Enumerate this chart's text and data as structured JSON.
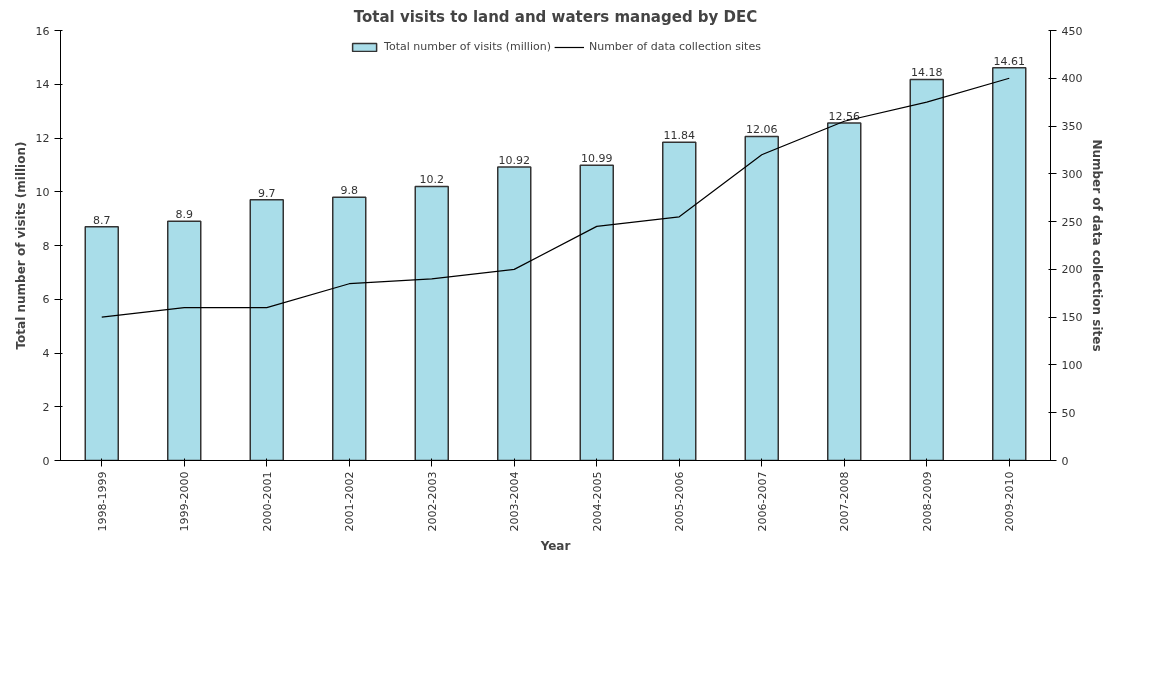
{
  "chart_data": {
    "type": "bar",
    "title": "Total visits to land and waters managed by DEC",
    "xlabel": "Year",
    "ylabel": "Total number of visits (million)",
    "y2label": "Number of data collection sites",
    "categories": [
      "1998-1999",
      "1999-2000",
      "2000-2001",
      "2001-2002",
      "2002-2003",
      "2003-2004",
      "2004-2005",
      "2005-2006",
      "2006-2007",
      "2007-2008",
      "2008-2009",
      "2009-2010"
    ],
    "series": [
      {
        "name": "Total number of visits (million)",
        "color": "#a9dde9",
        "values": [
          8.7,
          8.9,
          9.7,
          9.8,
          10.2,
          10.92,
          10.99,
          11.84,
          12.06,
          12.56,
          14.18,
          14.61
        ],
        "value_labels": [
          "8.7",
          "8.9",
          "9.7",
          "9.8",
          "10.2",
          "10.92",
          "10.99",
          "11.84",
          "12.06",
          "12.56",
          "14.18",
          "14.61"
        ]
      },
      {
        "name": "Number of data collection sites",
        "type": "line",
        "axis": "y2",
        "color": "#000000",
        "values": [
          150,
          160,
          160,
          185,
          190,
          200,
          245,
          255,
          320,
          355,
          375,
          400
        ]
      }
    ],
    "ylim": [
      0,
      16
    ],
    "yticks": [
      0,
      2,
      4,
      6,
      8,
      10,
      12,
      14,
      16
    ],
    "y2lim": [
      0,
      450
    ],
    "y2ticks": [
      0,
      50,
      100,
      150,
      200,
      250,
      300,
      350,
      400,
      450
    ],
    "grid": false,
    "legend": "top",
    "marker": "none",
    "line_style": "solid"
  }
}
